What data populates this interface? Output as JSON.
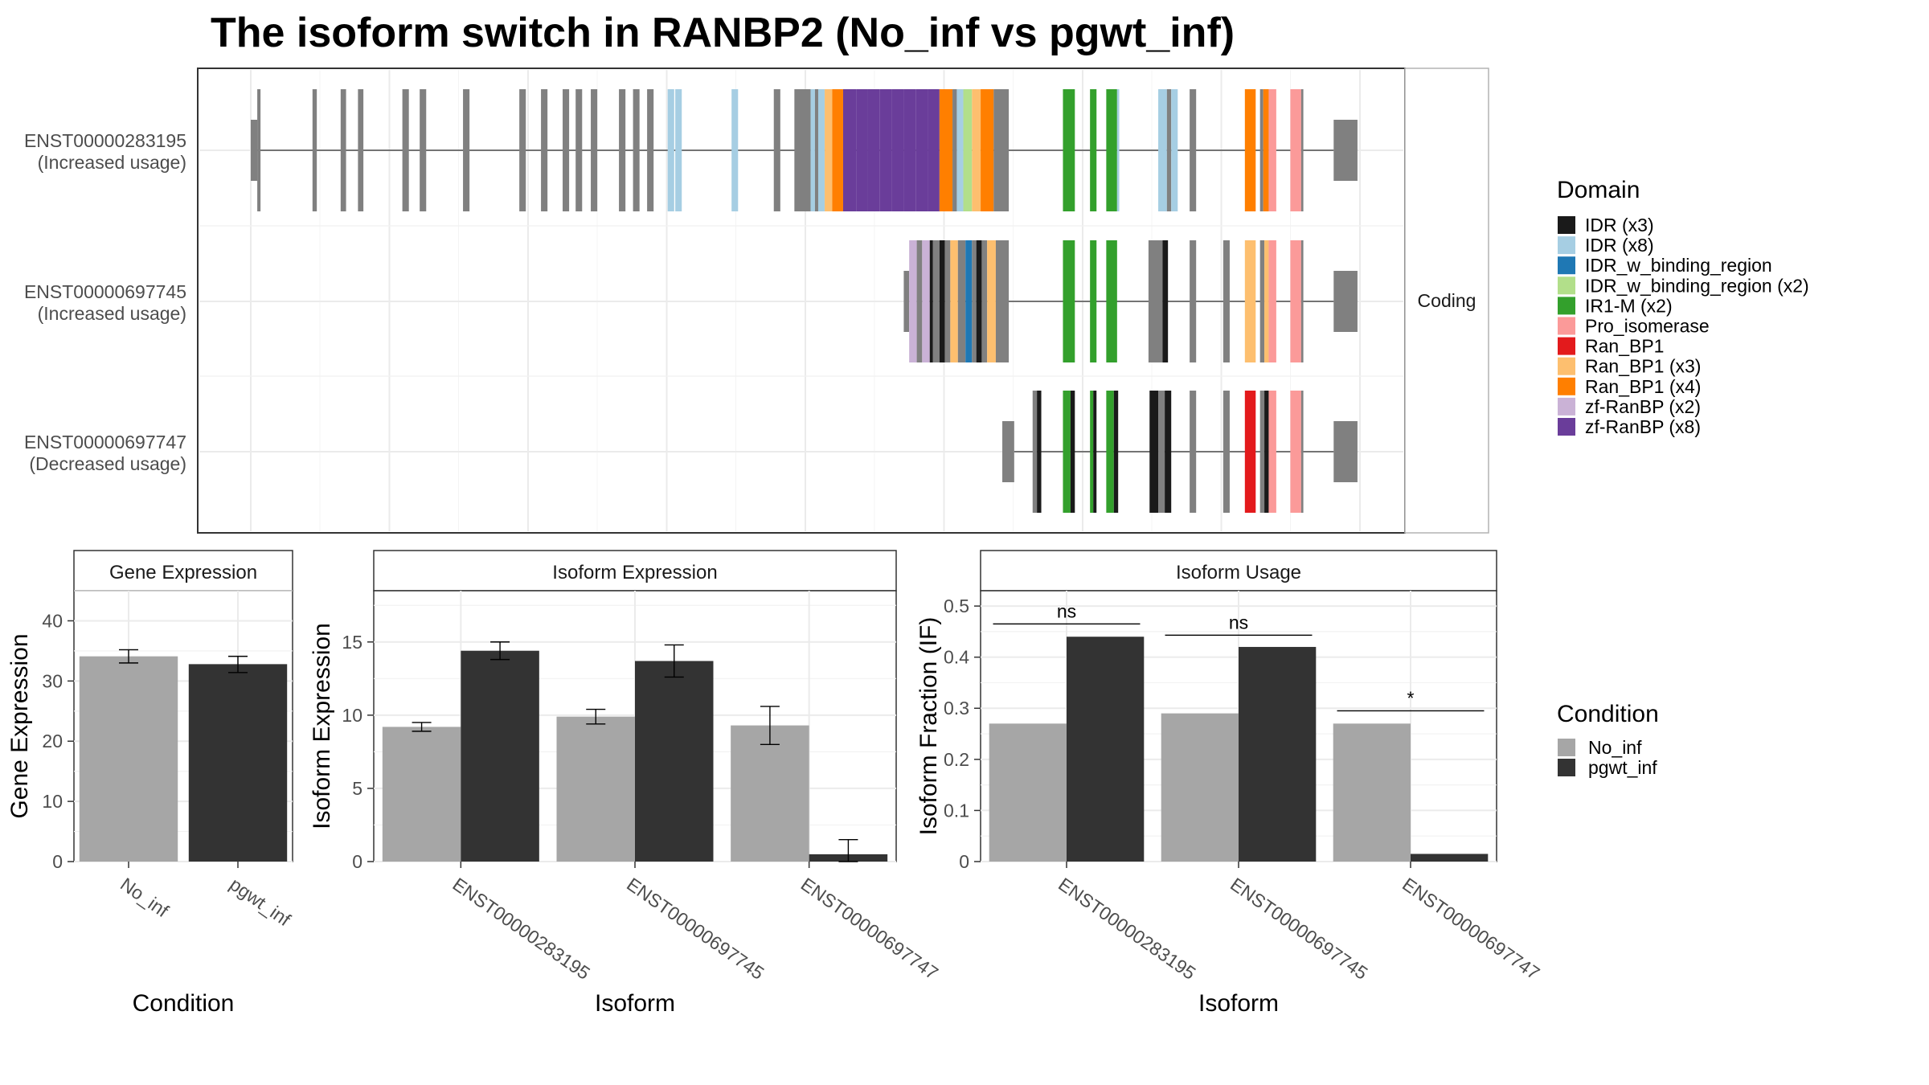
{
  "title": "The isoform switch in RANBP2 (No_inf vs pgwt_inf)",
  "colors": {
    "No_inf": "#a6a6a6",
    "pgwt_inf": "#333333",
    "exon": "#808080",
    "domains": {
      "IDR (x3)": "#1a1a1a",
      "IDR (x8)": "#a6cee3",
      "IDR_w_binding_region": "#1f78b4",
      "IDR_w_binding_region (x2)": "#b2df8a",
      "IR1-M (x2)": "#33a02c",
      "Pro_isomerase": "#fb9a99",
      "Ran_BP1": "#e31a1c",
      "Ran_BP1 (x3)": "#fdbf6f",
      "Ran_BP1 (x4)": "#ff7f00",
      "zf-RanBP (x2)": "#cab2d6",
      "zf-RanBP (x8)": "#6a3d9a"
    }
  },
  "structure": {
    "strip_label": "Coding",
    "coordinate_range": [
      0,
      1020
    ],
    "transcripts": [
      {
        "id": "ENST00000283195",
        "label": "ENST00000283195",
        "usage": "(Increased usage)",
        "utr": [
          [
            0,
            6
          ],
          [
            1000,
            1022
          ]
        ],
        "line": [
          6,
          1000
        ],
        "exons": [
          [
            6,
            9,
            "exon"
          ],
          [
            57,
            61,
            "exon"
          ],
          [
            83,
            88,
            "exon"
          ],
          [
            99,
            104,
            "exon"
          ],
          [
            140,
            146,
            "exon"
          ],
          [
            156,
            162,
            "exon"
          ],
          [
            196,
            202,
            "exon"
          ],
          [
            248,
            254,
            "exon"
          ],
          [
            268,
            274,
            "exon"
          ],
          [
            288,
            294,
            "exon"
          ],
          [
            300,
            306,
            "exon"
          ],
          [
            314,
            320,
            "exon"
          ],
          [
            340,
            346,
            "exon"
          ],
          [
            353,
            359,
            "exon"
          ],
          [
            366,
            372,
            "exon"
          ],
          [
            385,
            391,
            "IDR (x8)"
          ],
          [
            392,
            398,
            "IDR (x8)"
          ],
          [
            444,
            450,
            "IDR (x8)"
          ],
          [
            483,
            489,
            "exon"
          ],
          [
            502,
            517,
            "exon"
          ],
          [
            517,
            521,
            "IDR (x8)"
          ],
          [
            521,
            524,
            "exon"
          ],
          [
            524,
            530,
            "IDR (x8)"
          ],
          [
            530,
            537,
            "Ran_BP1 (x3)"
          ],
          [
            537,
            547,
            "Ran_BP1 (x4)"
          ],
          [
            547,
            559,
            "zf-RanBP (x8)"
          ],
          [
            559,
            570,
            "zf-RanBP (x8)"
          ],
          [
            570,
            581,
            "zf-RanBP (x8)"
          ],
          [
            581,
            592,
            "zf-RanBP (x8)"
          ],
          [
            592,
            603,
            "zf-RanBP (x8)"
          ],
          [
            603,
            614,
            "zf-RanBP (x8)"
          ],
          [
            614,
            625,
            "zf-RanBP (x8)"
          ],
          [
            625,
            636,
            "zf-RanBP (x8)"
          ],
          [
            636,
            648,
            "Ran_BP1 (x4)"
          ],
          [
            648,
            652,
            "exon"
          ],
          [
            652,
            658,
            "IDR (x8)"
          ],
          [
            658,
            666,
            "IDR_w_binding_region (x2)"
          ],
          [
            666,
            674,
            "Ran_BP1 (x3)"
          ],
          [
            674,
            686,
            "Ran_BP1 (x4)"
          ],
          [
            686,
            700,
            "exon"
          ],
          [
            750,
            761,
            "IR1-M (x2)"
          ],
          [
            775,
            781,
            "IR1-M (x2)"
          ],
          [
            790,
            800,
            "IR1-M (x2)"
          ],
          [
            800,
            802,
            "IDR (x8)"
          ],
          [
            838,
            846,
            "IDR (x8)"
          ],
          [
            846,
            850,
            "exon"
          ],
          [
            850,
            856,
            "IDR (x8)"
          ],
          [
            867,
            873,
            "exon"
          ],
          [
            918,
            928,
            "Ran_BP1 (x4)"
          ],
          [
            932,
            935,
            "exon"
          ],
          [
            935,
            940,
            "Ran_BP1 (x4)"
          ],
          [
            940,
            947,
            "Pro_isomerase"
          ],
          [
            960,
            970,
            "Pro_isomerase"
          ],
          [
            970,
            972,
            "exon"
          ]
        ]
      },
      {
        "id": "ENST00000697745",
        "label": "ENST00000697745",
        "usage": "(Increased usage)",
        "utr": [
          [
            603,
            608
          ],
          [
            1000,
            1022
          ]
        ],
        "line": [
          608,
          1000
        ],
        "exons": [
          [
            608,
            615,
            "zf-RanBP (x2)"
          ],
          [
            615,
            620,
            "exon"
          ],
          [
            620,
            627,
            "zf-RanBP (x2)"
          ],
          [
            627,
            630,
            "IDR (x3)"
          ],
          [
            630,
            636,
            "exon"
          ],
          [
            636,
            641,
            "IDR (x3)"
          ],
          [
            641,
            646,
            "exon"
          ],
          [
            646,
            653,
            "Ran_BP1 (x3)"
          ],
          [
            653,
            660,
            "exon"
          ],
          [
            660,
            666,
            "IDR_w_binding_region"
          ],
          [
            666,
            670,
            "exon"
          ],
          [
            670,
            675,
            "IDR (x3)"
          ],
          [
            675,
            680,
            "exon"
          ],
          [
            680,
            688,
            "Ran_BP1 (x3)"
          ],
          [
            688,
            700,
            "exon"
          ],
          [
            750,
            761,
            "IR1-M (x2)"
          ],
          [
            775,
            781,
            "IR1-M (x2)"
          ],
          [
            790,
            800,
            "IR1-M (x2)"
          ],
          [
            829,
            842,
            "exon"
          ],
          [
            842,
            847,
            "IDR (x3)"
          ],
          [
            867,
            873,
            "exon"
          ],
          [
            898,
            904,
            "exon"
          ],
          [
            918,
            928,
            "Ran_BP1 (x3)"
          ],
          [
            932,
            936,
            "exon"
          ],
          [
            936,
            940,
            "Ran_BP1 (x3)"
          ],
          [
            940,
            947,
            "Pro_isomerase"
          ],
          [
            960,
            970,
            "Pro_isomerase"
          ],
          [
            970,
            972,
            "exon"
          ]
        ]
      },
      {
        "id": "ENST00000697747",
        "label": "ENST00000697747",
        "usage": "(Decreased usage)",
        "utr": [
          [
            694,
            705
          ],
          [
            1000,
            1022
          ]
        ],
        "line": [
          705,
          1000
        ],
        "exons": [
          [
            722,
            726,
            "exon"
          ],
          [
            726,
            730,
            "IDR (x3)"
          ],
          [
            750,
            757,
            "IR1-M (x2)"
          ],
          [
            757,
            761,
            "IDR (x3)"
          ],
          [
            775,
            778,
            "IR1-M (x2)"
          ],
          [
            778,
            781,
            "IDR (x3)"
          ],
          [
            790,
            797,
            "IR1-M (x2)"
          ],
          [
            797,
            801,
            "IDR (x3)"
          ],
          [
            830,
            838,
            "IDR (x3)"
          ],
          [
            838,
            844,
            "exon"
          ],
          [
            844,
            850,
            "IDR (x3)"
          ],
          [
            867,
            873,
            "exon"
          ],
          [
            898,
            904,
            "exon"
          ],
          [
            918,
            928,
            "Ran_BP1"
          ],
          [
            932,
            936,
            "exon"
          ],
          [
            936,
            940,
            "IDR (x3)"
          ],
          [
            940,
            947,
            "Pro_isomerase"
          ],
          [
            960,
            970,
            "Pro_isomerase"
          ],
          [
            970,
            972,
            "exon"
          ]
        ]
      }
    ]
  },
  "domain_legend": {
    "title": "Domain",
    "items": [
      {
        "label": "IDR (x3)",
        "color": "#1a1a1a"
      },
      {
        "label": "IDR (x8)",
        "color": "#a6cee3"
      },
      {
        "label": "IDR_w_binding_region",
        "color": "#1f78b4"
      },
      {
        "label": "IDR_w_binding_region (x2)",
        "color": "#b2df8a"
      },
      {
        "label": "IR1-M (x2)",
        "color": "#33a02c"
      },
      {
        "label": "Pro_isomerase",
        "color": "#fb9a99"
      },
      {
        "label": "Ran_BP1",
        "color": "#e31a1c"
      },
      {
        "label": "Ran_BP1 (x3)",
        "color": "#fdbf6f"
      },
      {
        "label": "Ran_BP1 (x4)",
        "color": "#ff7f00"
      },
      {
        "label": "zf-RanBP (x2)",
        "color": "#cab2d6"
      },
      {
        "label": "zf-RanBP (x8)",
        "color": "#6a3d9a"
      }
    ]
  },
  "condition_legend": {
    "title": "Condition",
    "items": [
      {
        "label": "No_inf",
        "color": "#a6a6a6"
      },
      {
        "label": "pgwt_inf",
        "color": "#333333"
      }
    ]
  },
  "chart_data": [
    {
      "type": "bar",
      "strip": "Gene Expression",
      "xlabel": "Condition",
      "ylabel": "Gene Expression",
      "ylim": [
        0,
        45
      ],
      "yticks": [
        0,
        10,
        20,
        30,
        40
      ],
      "categories": [
        "No_inf",
        "pgwt_inf"
      ],
      "values": [
        34.1,
        32.8
      ],
      "error_low": [
        33.0,
        31.4
      ],
      "error_high": [
        35.2,
        34.1
      ],
      "colors": [
        "#a6a6a6",
        "#333333"
      ],
      "grid": true
    },
    {
      "type": "bar",
      "strip": "Isoform Expression",
      "xlabel": "Isoform",
      "ylabel": "Isoform Expression",
      "ylim": [
        0,
        18.5
      ],
      "yticks": [
        0,
        5,
        10,
        15
      ],
      "categories": [
        "ENST00000283195",
        "ENST00000697745",
        "ENST00000697747"
      ],
      "series": [
        {
          "name": "No_inf",
          "values": [
            9.2,
            9.9,
            9.3
          ],
          "error_low": [
            8.9,
            9.4,
            8.0
          ],
          "error_high": [
            9.5,
            10.4,
            10.6
          ]
        },
        {
          "name": "pgwt_inf",
          "values": [
            14.4,
            13.7,
            0.5
          ],
          "error_low": [
            13.8,
            12.6,
            0.0
          ],
          "error_high": [
            15.0,
            14.8,
            1.5
          ]
        }
      ],
      "grid": true
    },
    {
      "type": "bar",
      "strip": "Isoform Usage",
      "xlabel": "Isoform",
      "ylabel": "Isoform Fraction (IF)",
      "ylim": [
        0,
        0.53
      ],
      "yticks": [
        0.0,
        0.1,
        0.2,
        0.3,
        0.4,
        0.5
      ],
      "categories": [
        "ENST00000283195",
        "ENST00000697745",
        "ENST00000697747"
      ],
      "series": [
        {
          "name": "No_inf",
          "values": [
            0.27,
            0.29,
            0.27
          ]
        },
        {
          "name": "pgwt_inf",
          "values": [
            0.44,
            0.42,
            0.015
          ]
        }
      ],
      "significance": [
        {
          "label": "ns",
          "y": 0.465
        },
        {
          "label": "ns",
          "y": 0.443
        },
        {
          "label": "*",
          "y": 0.295
        }
      ],
      "grid": true
    }
  ]
}
